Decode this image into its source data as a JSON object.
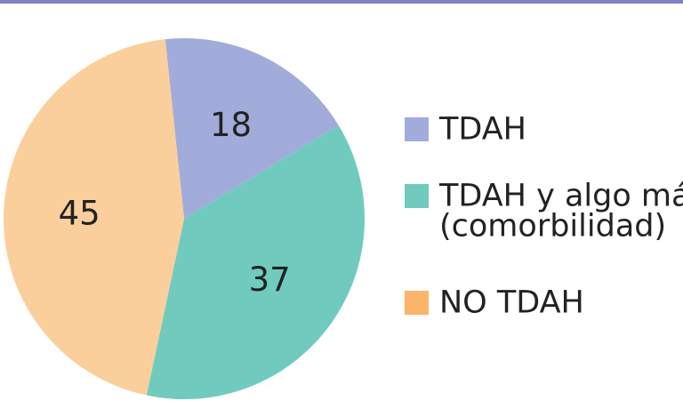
{
  "chart_data": {
    "type": "pie",
    "categories": [
      "TDAH",
      "TDAH y algo más (comorbilidad)",
      "NO TDAH"
    ],
    "values": [
      18,
      37,
      45
    ],
    "data_labels": [
      "18",
      "37",
      "45"
    ],
    "colors": [
      "#a2acdb",
      "#70cbbe",
      "#fbcf9b"
    ],
    "legend": {
      "placement": "right",
      "items": [
        {
          "lines": [
            "TDAH"
          ],
          "color": "#a2acdb"
        },
        {
          "lines": [
            "TDAH y algo más",
            "(comorbilidad)"
          ],
          "color": "#70cbbe"
        },
        {
          "lines": [
            "NO TDAH"
          ],
          "color": "#fbb46a"
        }
      ]
    },
    "start_angle_deg": -6,
    "direction": "clockwise"
  },
  "header_rule_color": "#7f7fc4"
}
